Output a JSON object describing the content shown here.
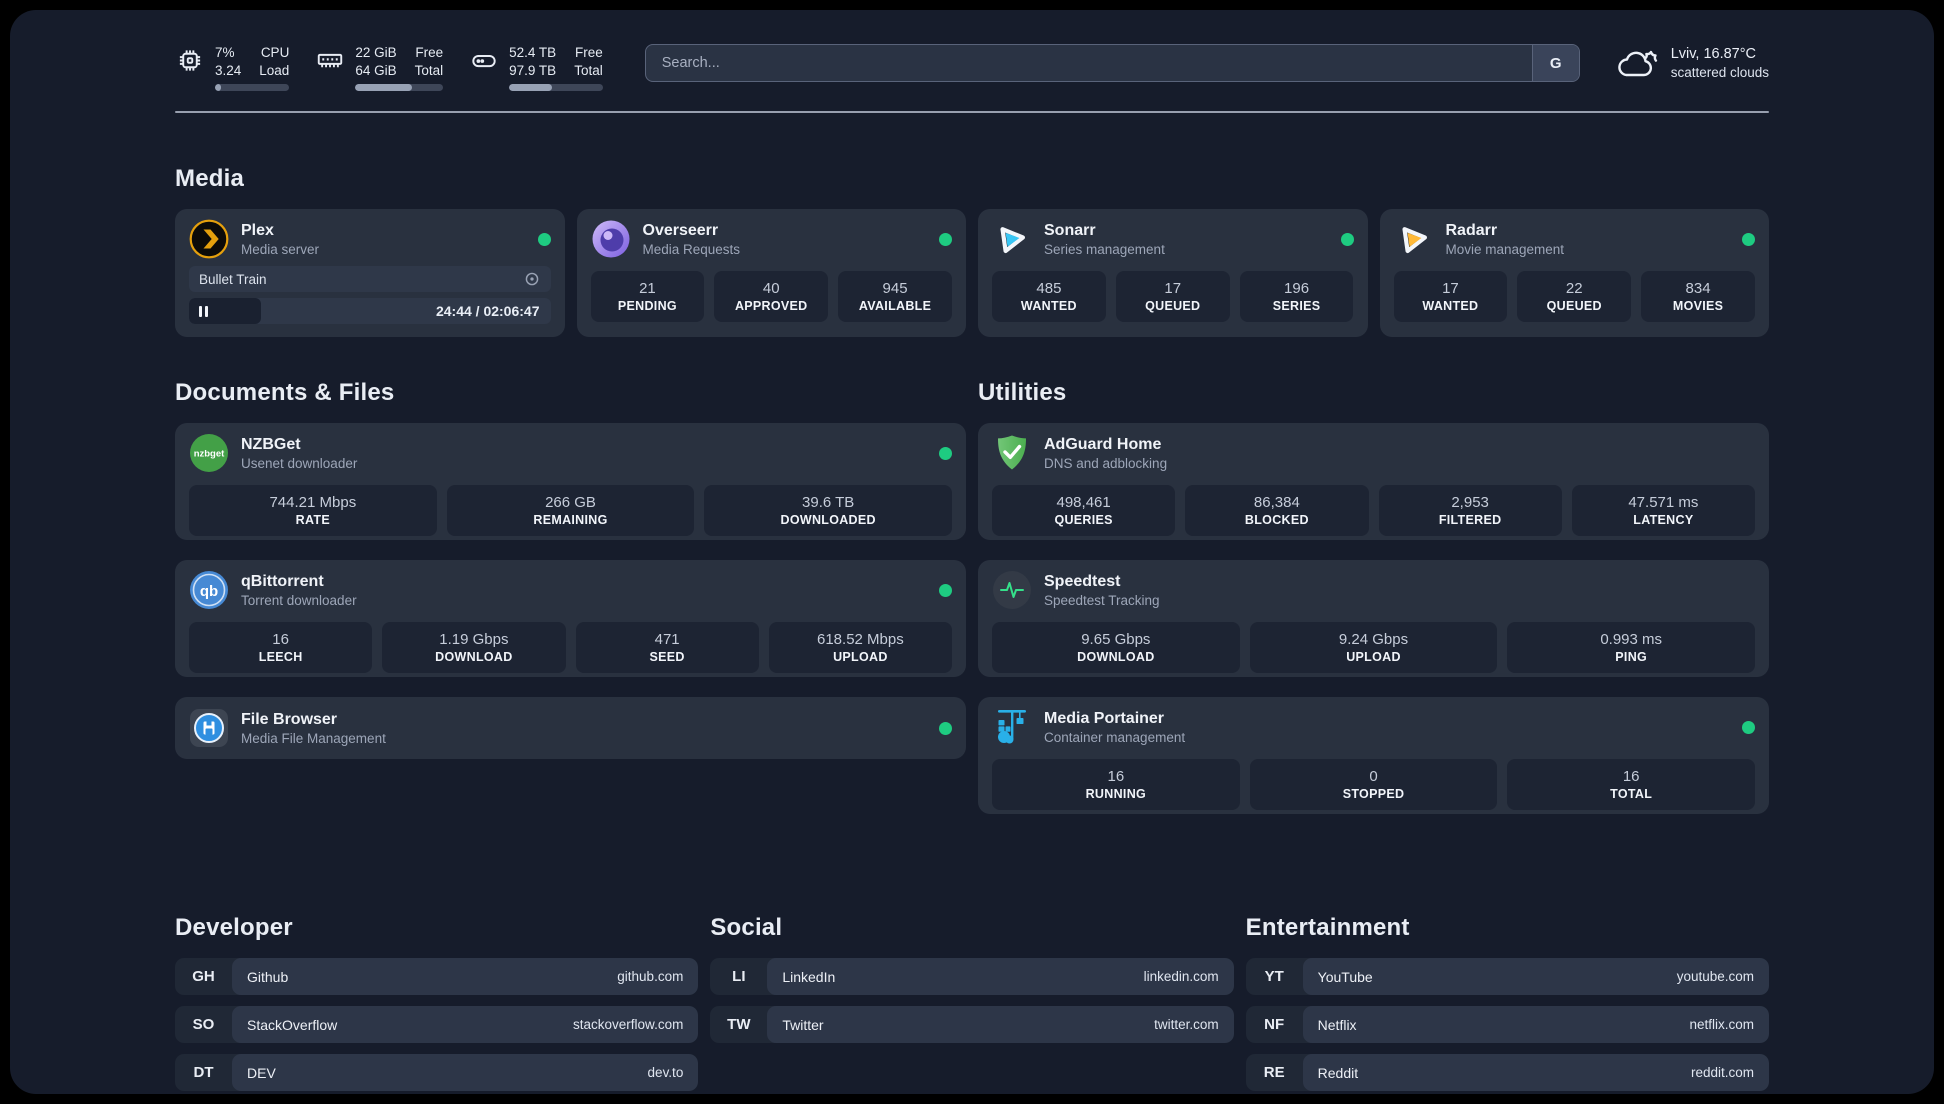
{
  "topbar": {
    "cpu": {
      "v1": "7%",
      "v2": "3.24",
      "l1": "CPU",
      "l2": "Load",
      "progress": 8
    },
    "ram": {
      "v1": "22 GiB",
      "v2": "64 GiB",
      "l1": "Free",
      "l2": "Total",
      "progress": 65
    },
    "disk": {
      "v1": "52.4 TB",
      "v2": "97.9 TB",
      "l1": "Free",
      "l2": "Total",
      "progress": 46
    },
    "search": {
      "placeholder": "Search...",
      "button": "G"
    },
    "weather": {
      "line1": "Lviv, 16.87°C",
      "line2": "scattered clouds"
    }
  },
  "sections": {
    "media": "Media",
    "docs": "Documents & Files",
    "utilities": "Utilities"
  },
  "apps": {
    "plex": {
      "name": "Plex",
      "desc": "Media server",
      "now_playing": "Bullet Train",
      "time": "24:44 / 02:06:47",
      "progress": 20
    },
    "overseerr": {
      "name": "Overseerr",
      "desc": "Media Requests",
      "stats": [
        {
          "value": "21",
          "label": "PENDING"
        },
        {
          "value": "40",
          "label": "APPROVED"
        },
        {
          "value": "945",
          "label": "AVAILABLE"
        }
      ]
    },
    "sonarr": {
      "name": "Sonarr",
      "desc": "Series management",
      "stats": [
        {
          "value": "485",
          "label": "WANTED"
        },
        {
          "value": "17",
          "label": "QUEUED"
        },
        {
          "value": "196",
          "label": "SERIES"
        }
      ]
    },
    "radarr": {
      "name": "Radarr",
      "desc": "Movie management",
      "stats": [
        {
          "value": "17",
          "label": "WANTED"
        },
        {
          "value": "22",
          "label": "QUEUED"
        },
        {
          "value": "834",
          "label": "MOVIES"
        }
      ]
    },
    "nzbget": {
      "name": "NZBGet",
      "desc": "Usenet downloader",
      "stats": [
        {
          "value": "744.21 Mbps",
          "label": "RATE"
        },
        {
          "value": "266 GB",
          "label": "REMAINING"
        },
        {
          "value": "39.6 TB",
          "label": "DOWNLOADED"
        }
      ]
    },
    "qbittorrent": {
      "name": "qBittorrent",
      "desc": "Torrent downloader",
      "stats": [
        {
          "value": "16",
          "label": "LEECH"
        },
        {
          "value": "1.19 Gbps",
          "label": "DOWNLOAD"
        },
        {
          "value": "471",
          "label": "SEED"
        },
        {
          "value": "618.52 Mbps",
          "label": "UPLOAD"
        }
      ]
    },
    "filebrowser": {
      "name": "File Browser",
      "desc": "Media File Management"
    },
    "adguard": {
      "name": "AdGuard Home",
      "desc": "DNS and adblocking",
      "stats": [
        {
          "value": "498,461",
          "label": "QUERIES"
        },
        {
          "value": "86,384",
          "label": "BLOCKED"
        },
        {
          "value": "2,953",
          "label": "FILTERED"
        },
        {
          "value": "47.571 ms",
          "label": "LATENCY"
        }
      ]
    },
    "speedtest": {
      "name": "Speedtest",
      "desc": "Speedtest Tracking",
      "stats": [
        {
          "value": "9.65 Gbps",
          "label": "DOWNLOAD"
        },
        {
          "value": "9.24 Gbps",
          "label": "UPLOAD"
        },
        {
          "value": "0.993 ms",
          "label": "PING"
        }
      ]
    },
    "portainer": {
      "name": "Media Portainer",
      "desc": "Container management",
      "stats": [
        {
          "value": "16",
          "label": "RUNNING"
        },
        {
          "value": "0",
          "label": "STOPPED"
        },
        {
          "value": "16",
          "label": "TOTAL"
        }
      ]
    }
  },
  "bookmarks": {
    "developer": {
      "title": "Developer",
      "items": [
        {
          "abbr": "GH",
          "name": "Github",
          "url": "github.com"
        },
        {
          "abbr": "SO",
          "name": "StackOverflow",
          "url": "stackoverflow.com"
        },
        {
          "abbr": "DT",
          "name": "DEV",
          "url": "dev.to"
        }
      ]
    },
    "social": {
      "title": "Social",
      "items": [
        {
          "abbr": "LI",
          "name": "LinkedIn",
          "url": "linkedin.com"
        },
        {
          "abbr": "TW",
          "name": "Twitter",
          "url": "twitter.com"
        }
      ]
    },
    "entertainment": {
      "title": "Entertainment",
      "items": [
        {
          "abbr": "YT",
          "name": "YouTube",
          "url": "youtube.com"
        },
        {
          "abbr": "NF",
          "name": "Netflix",
          "url": "netflix.com"
        },
        {
          "abbr": "RE",
          "name": "Reddit",
          "url": "reddit.com"
        }
      ]
    }
  },
  "colors": {
    "status_online": "#1ecb81",
    "plex_accent": "#e5a00d",
    "sonarr_accent": "#38c6f4",
    "radarr_accent": "#ffb937"
  }
}
